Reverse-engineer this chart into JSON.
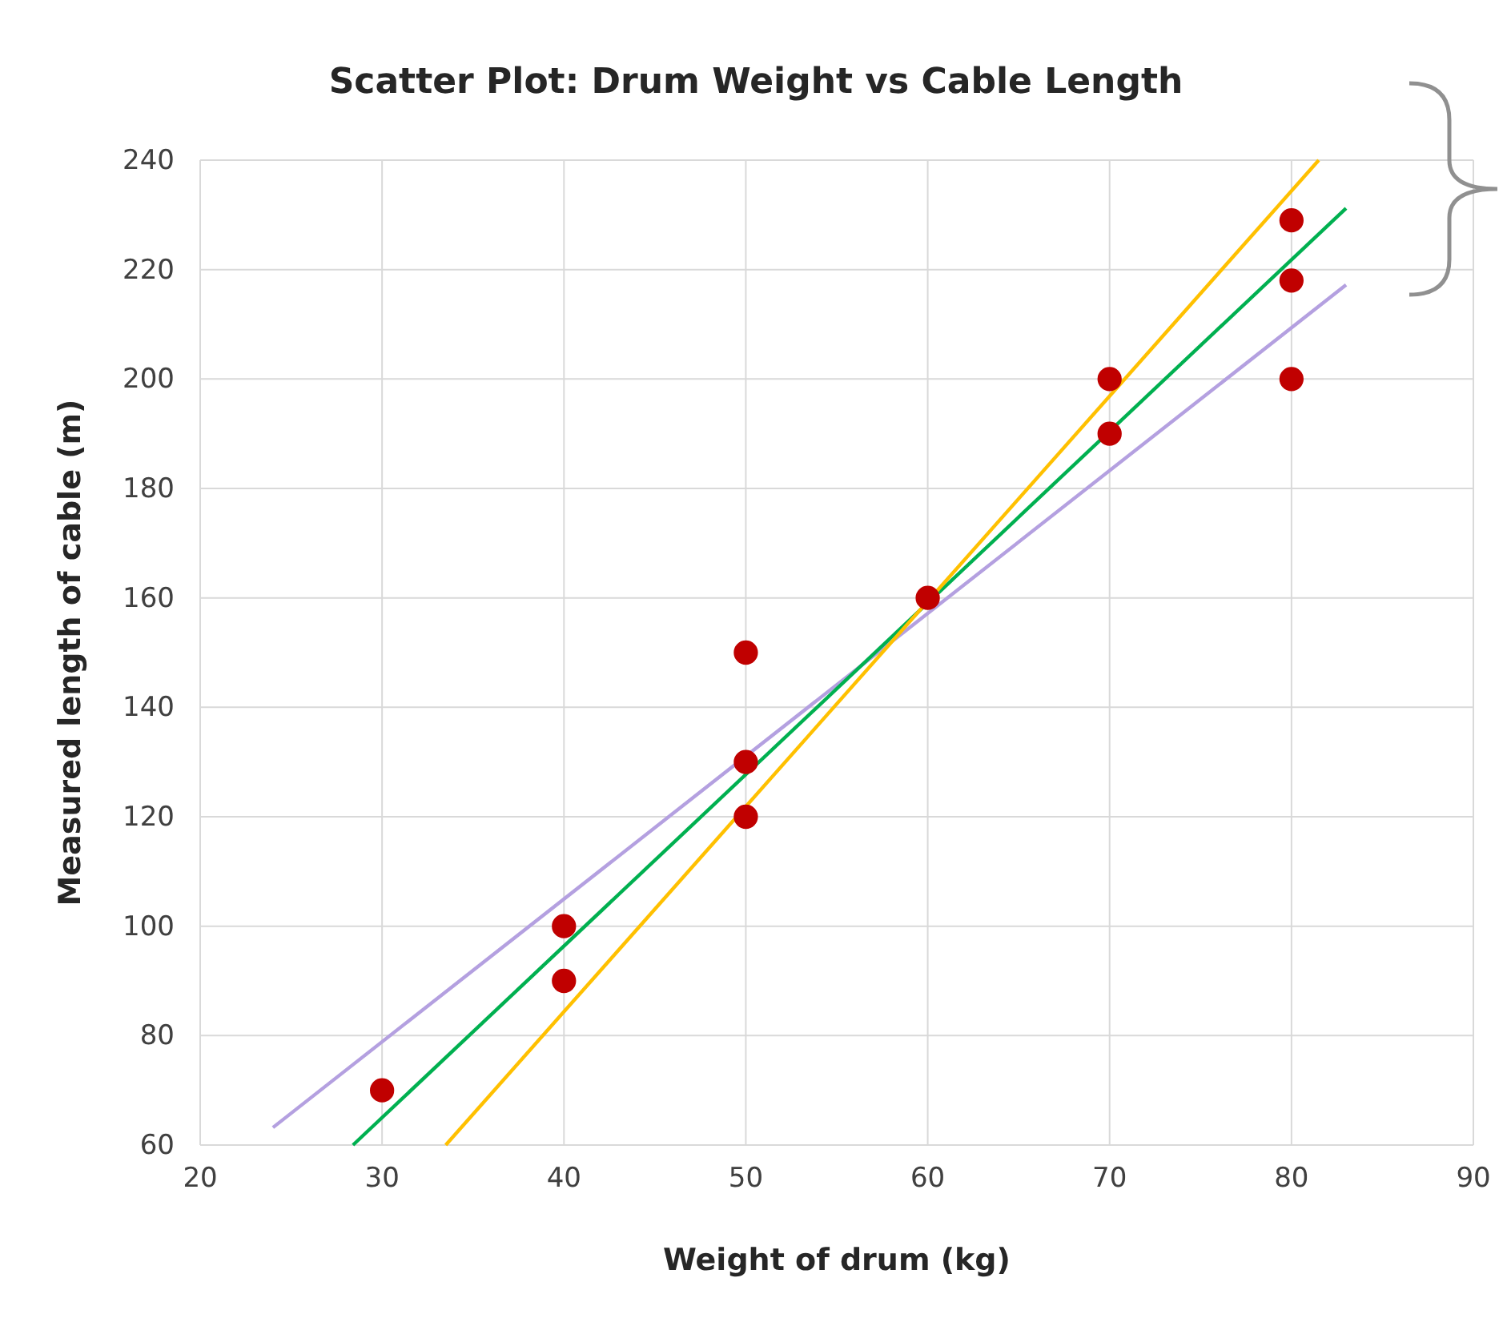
{
  "chart_data": {
    "type": "scatter",
    "title": "Scatter Plot: Drum Weight vs Cable Length",
    "xlabel": "Weight of drum (kg)",
    "ylabel": "Measured length of cable (m)",
    "xlim": [
      20,
      90
    ],
    "xticks": [
      20,
      30,
      40,
      50,
      60,
      70,
      80,
      90
    ],
    "ylim": [
      60,
      240
    ],
    "yticks": [
      60,
      80,
      100,
      120,
      140,
      160,
      180,
      200,
      220,
      240
    ],
    "grid": true,
    "series": [
      {
        "marker": "circle",
        "color": "#c00000",
        "x": [
          30,
          40,
          40,
          50,
          50,
          50,
          60,
          70,
          70,
          80,
          80,
          80
        ],
        "values": [
          70,
          100,
          90,
          150,
          130,
          120,
          160,
          200,
          190,
          229,
          218,
          200
        ]
      },
      {
        "type": "line",
        "marker": "none",
        "color": "#ffc000",
        "x": [
          33.5,
          81.5
        ],
        "values": [
          60,
          240
        ]
      },
      {
        "type": "line",
        "marker": "none",
        "color": "#00b050",
        "x": [
          28.4,
          83
        ],
        "values": [
          60,
          231.2
        ]
      },
      {
        "type": "line",
        "marker": "none",
        "color": "#b4a0e0",
        "x": [
          24,
          83
        ],
        "values": [
          63.2,
          217.2
        ]
      }
    ]
  }
}
